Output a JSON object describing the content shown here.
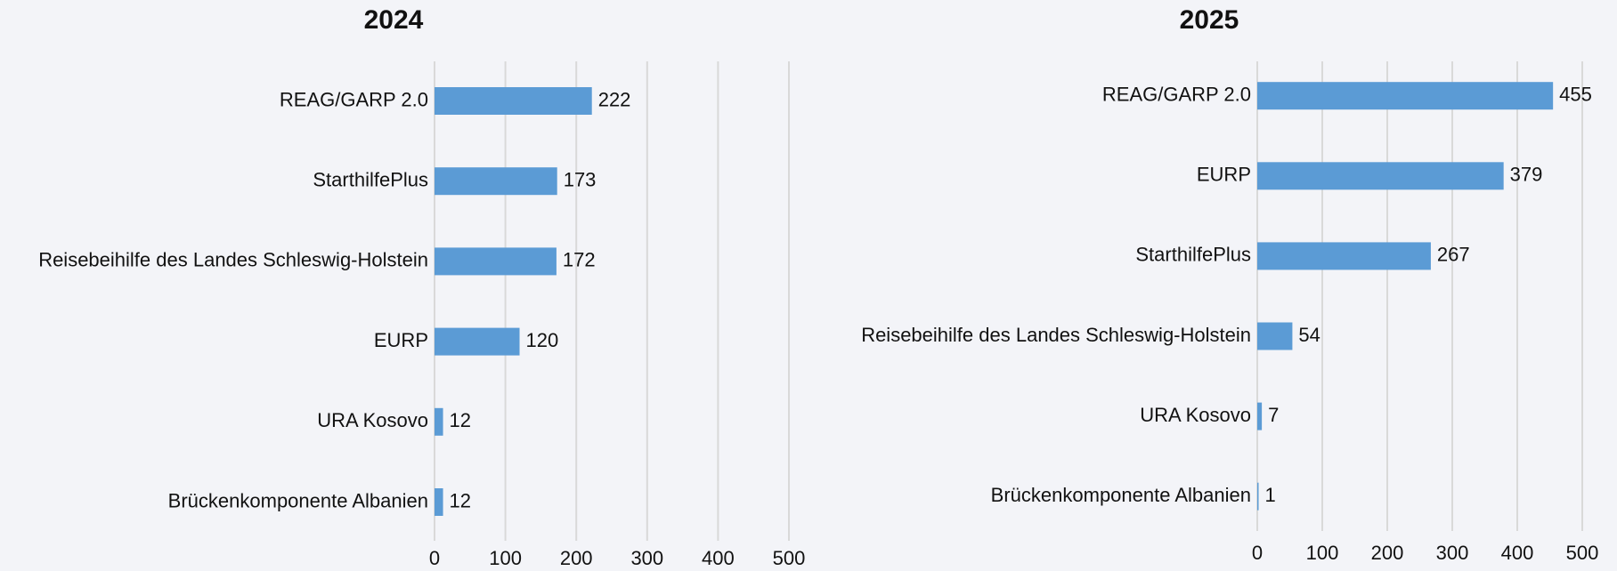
{
  "chart_data": [
    {
      "type": "bar",
      "orientation": "horizontal",
      "title": "2024",
      "categories": [
        "REAG/GARP 2.0",
        "StarthilfePlus",
        "Reisebeihilfe des Landes Schleswig-Holstein",
        "EURP",
        "URA Kosovo",
        "Brückenkomponente Albanien"
      ],
      "values": [
        222,
        173,
        172,
        120,
        12,
        12
      ],
      "color": "#5b9bd5",
      "xlim": [
        0,
        500
      ],
      "xticks": [
        0,
        100,
        200,
        300,
        400,
        500
      ],
      "grid": true
    },
    {
      "type": "bar",
      "orientation": "horizontal",
      "title": "2025",
      "categories": [
        "REAG/GARP 2.0",
        "EURP",
        "StarthilfePlus",
        "Reisebeihilfe des Landes Schleswig-Holstein",
        "URA Kosovo",
        "Brückenkomponente Albanien"
      ],
      "values": [
        455,
        379,
        267,
        54,
        7,
        1
      ],
      "color": "#5b9bd5",
      "xlim": [
        0,
        500
      ],
      "xticks": [
        0,
        100,
        200,
        300,
        400,
        500
      ],
      "grid": true
    }
  ]
}
